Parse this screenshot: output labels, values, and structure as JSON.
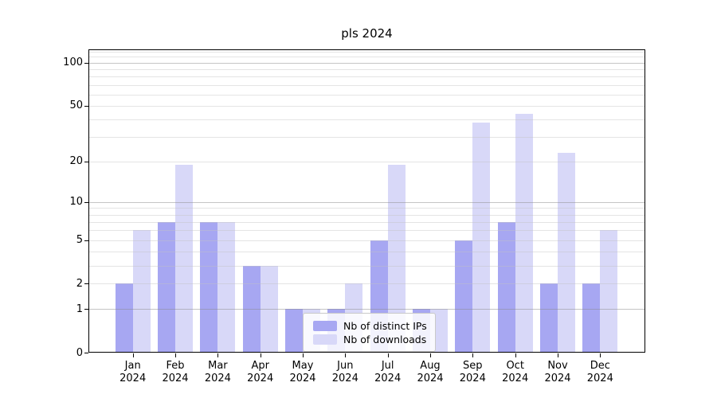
{
  "chart_data": {
    "type": "bar",
    "title": "pls 2024",
    "categories": [
      "Jan",
      "Feb",
      "Mar",
      "Apr",
      "May",
      "Jun",
      "Jul",
      "Aug",
      "Sep",
      "Oct",
      "Nov",
      "Dec"
    ],
    "category_year": "2024",
    "series": [
      {
        "name": "Nb of distinct IPs",
        "color": "#a7a7f2",
        "values": [
          2,
          7,
          7,
          3,
          1,
          1,
          5,
          1,
          5,
          7,
          2,
          2
        ]
      },
      {
        "name": "Nb of downloads",
        "color": "#d8d8f8",
        "values": [
          6,
          19,
          7,
          3,
          1,
          2,
          19,
          1,
          38,
          44,
          23,
          6
        ]
      }
    ],
    "yaxis": {
      "scale": "log1p",
      "ylim": [
        0,
        124
      ],
      "ticks": [
        {
          "v": 0,
          "label": "0"
        },
        {
          "v": 1,
          "label": "1"
        },
        {
          "v": 2,
          "label": "2"
        },
        {
          "v": 5,
          "label": "5"
        },
        {
          "v": 10,
          "label": "10"
        },
        {
          "v": 20,
          "label": "20"
        },
        {
          "v": 50,
          "label": "50"
        },
        {
          "v": 100,
          "label": "100"
        }
      ],
      "major_grid": [
        1,
        10,
        100
      ],
      "minor_grid": [
        2,
        3,
        4,
        5,
        6,
        7,
        8,
        9,
        20,
        30,
        40,
        50,
        60,
        70,
        80,
        90,
        110,
        120
      ]
    },
    "legend_position": "lower center",
    "grid": true
  }
}
